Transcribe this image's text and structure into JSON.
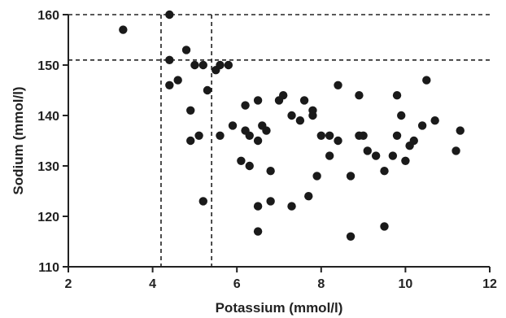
{
  "chart_data": {
    "type": "scatter",
    "xlabel": "Potassium (mmol/l)",
    "ylabel": "Sodium (mmol/l)",
    "xlim": [
      2,
      12
    ],
    "ylim": [
      110,
      160
    ],
    "x_ticks": [
      2,
      4,
      6,
      8,
      10,
      12
    ],
    "y_ticks": [
      110,
      120,
      130,
      140,
      150,
      160
    ],
    "reference_lines": {
      "horizontal": [
        151,
        160
      ],
      "vertical": [
        4.2,
        5.4
      ],
      "style": "dashed"
    },
    "grid": false,
    "marker_color": "#1a1a1a",
    "points": [
      {
        "x": 3.3,
        "y": 157
      },
      {
        "x": 4.4,
        "y": 160
      },
      {
        "x": 4.8,
        "y": 153
      },
      {
        "x": 4.4,
        "y": 151
      },
      {
        "x": 4.6,
        "y": 147
      },
      {
        "x": 4.4,
        "y": 146
      },
      {
        "x": 5.0,
        "y": 150
      },
      {
        "x": 5.2,
        "y": 150
      },
      {
        "x": 5.5,
        "y": 149
      },
      {
        "x": 5.6,
        "y": 150
      },
      {
        "x": 5.8,
        "y": 150
      },
      {
        "x": 5.3,
        "y": 145
      },
      {
        "x": 4.9,
        "y": 141
      },
      {
        "x": 4.9,
        "y": 135
      },
      {
        "x": 5.1,
        "y": 136
      },
      {
        "x": 5.2,
        "y": 123
      },
      {
        "x": 5.6,
        "y": 136
      },
      {
        "x": 5.9,
        "y": 138
      },
      {
        "x": 6.1,
        "y": 131
      },
      {
        "x": 6.2,
        "y": 142
      },
      {
        "x": 6.2,
        "y": 137
      },
      {
        "x": 6.3,
        "y": 136
      },
      {
        "x": 6.3,
        "y": 130
      },
      {
        "x": 6.5,
        "y": 143
      },
      {
        "x": 6.5,
        "y": 135
      },
      {
        "x": 6.5,
        "y": 122
      },
      {
        "x": 6.5,
        "y": 117
      },
      {
        "x": 6.6,
        "y": 138
      },
      {
        "x": 6.7,
        "y": 137
      },
      {
        "x": 6.8,
        "y": 129
      },
      {
        "x": 6.8,
        "y": 123
      },
      {
        "x": 7.0,
        "y": 143
      },
      {
        "x": 7.1,
        "y": 144
      },
      {
        "x": 7.3,
        "y": 140
      },
      {
        "x": 7.3,
        "y": 122
      },
      {
        "x": 7.5,
        "y": 139
      },
      {
        "x": 7.6,
        "y": 143
      },
      {
        "x": 7.7,
        "y": 124
      },
      {
        "x": 7.8,
        "y": 141
      },
      {
        "x": 7.8,
        "y": 140
      },
      {
        "x": 7.9,
        "y": 128
      },
      {
        "x": 8.0,
        "y": 136
      },
      {
        "x": 8.2,
        "y": 136
      },
      {
        "x": 8.2,
        "y": 132
      },
      {
        "x": 8.4,
        "y": 146
      },
      {
        "x": 8.4,
        "y": 135
      },
      {
        "x": 8.7,
        "y": 128
      },
      {
        "x": 8.7,
        "y": 116
      },
      {
        "x": 8.9,
        "y": 144
      },
      {
        "x": 8.9,
        "y": 136
      },
      {
        "x": 9.0,
        "y": 136
      },
      {
        "x": 9.1,
        "y": 133
      },
      {
        "x": 9.3,
        "y": 132
      },
      {
        "x": 9.5,
        "y": 129
      },
      {
        "x": 9.5,
        "y": 118
      },
      {
        "x": 9.7,
        "y": 132
      },
      {
        "x": 9.8,
        "y": 144
      },
      {
        "x": 9.8,
        "y": 136
      },
      {
        "x": 9.9,
        "y": 140
      },
      {
        "x": 10.0,
        "y": 131
      },
      {
        "x": 10.1,
        "y": 134
      },
      {
        "x": 10.2,
        "y": 135
      },
      {
        "x": 10.4,
        "y": 138
      },
      {
        "x": 10.5,
        "y": 147
      },
      {
        "x": 10.7,
        "y": 139
      },
      {
        "x": 11.2,
        "y": 133
      },
      {
        "x": 11.3,
        "y": 137
      }
    ]
  }
}
